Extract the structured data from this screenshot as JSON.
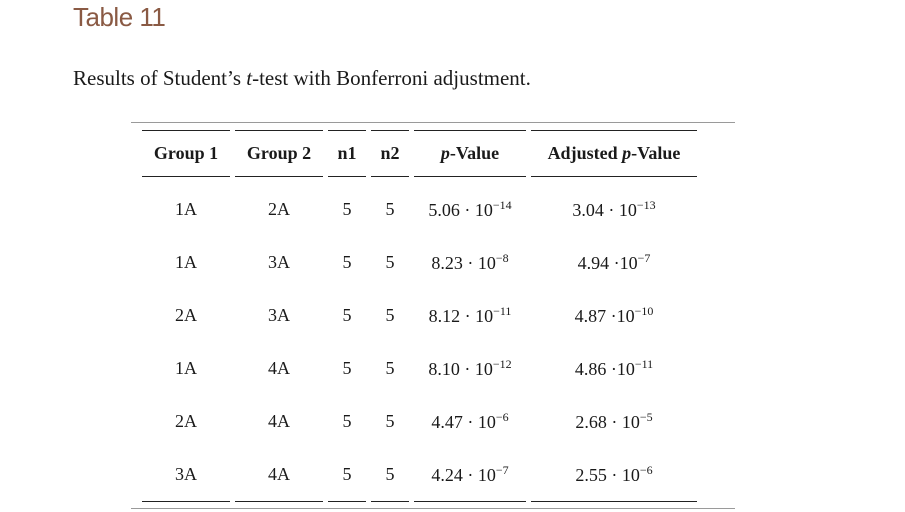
{
  "table_label": "Table 11",
  "caption": {
    "before": "Results of Student’s ",
    "italic": "t",
    "after": "-test with Bonferroni adjustment."
  },
  "headers": {
    "group1": "Group 1",
    "group2": "Group 2",
    "n1": "n1",
    "n2": "n2",
    "pvalue_italic": "p",
    "pvalue_rest": "-Value",
    "adjusted_prefix": "Adjusted ",
    "adjusted_italic": "p",
    "adjusted_rest": "-Value"
  },
  "rows": [
    {
      "g1": "1A",
      "g2": "2A",
      "n1": "5",
      "n2": "5",
      "p_mant": "5.06 · 10",
      "p_exp": "−14",
      "ap_mant": "3.04 · 10",
      "ap_exp": "−13"
    },
    {
      "g1": "1A",
      "g2": "3A",
      "n1": "5",
      "n2": "5",
      "p_mant": "8.23 · 10",
      "p_exp": "−8",
      "ap_mant": "4.94 ·10",
      "ap_exp": "−7"
    },
    {
      "g1": "2A",
      "g2": "3A",
      "n1": "5",
      "n2": "5",
      "p_mant": "8.12 · 10",
      "p_exp": "−11",
      "ap_mant": "4.87 ·10",
      "ap_exp": "−10"
    },
    {
      "g1": "1A",
      "g2": "4A",
      "n1": "5",
      "n2": "5",
      "p_mant": "8.10 · 10",
      "p_exp": "−12",
      "ap_mant": "4.86 ·10",
      "ap_exp": "−11"
    },
    {
      "g1": "2A",
      "g2": "4A",
      "n1": "5",
      "n2": "5",
      "p_mant": "4.47 · 10",
      "p_exp": "−6",
      "ap_mant": "2.68 · 10",
      "ap_exp": "−5"
    },
    {
      "g1": "3A",
      "g2": "4A",
      "n1": "5",
      "n2": "5",
      "p_mant": "4.24 · 10",
      "p_exp": "−7",
      "ap_mant": "2.55 · 10",
      "ap_exp": "−6"
    }
  ]
}
